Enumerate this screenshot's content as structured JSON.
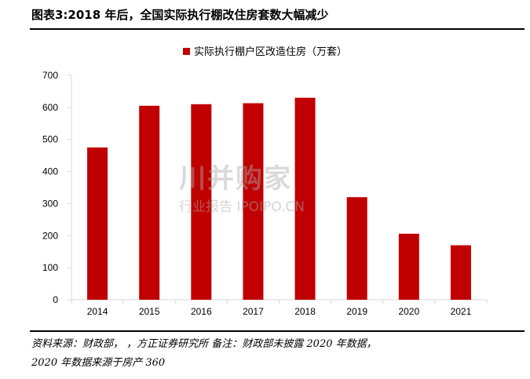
{
  "title": "图表3:2018 年后，全国实际执行棚改住房套数大幅减少",
  "source_line1": "资料来源：财政部，      ，方正证券研究所 备注：财政部未披露 2020 年数据，",
  "source_line2": "2020 年数据来源于房产 360",
  "watermark": {
    "brand": "川并购家",
    "sub": "行业报告 IPOIPO.CN"
  },
  "chart_data": {
    "type": "bar",
    "categories": [
      "2014",
      "2015",
      "2016",
      "2017",
      "2018",
      "2019",
      "2020",
      "2021"
    ],
    "series": [
      {
        "name": "实际执行棚户区改造住房（万套）",
        "values": [
          475,
          605,
          610,
          613,
          630,
          320,
          206,
          170
        ]
      }
    ],
    "ylim": [
      0,
      700
    ],
    "yticks": [
      0,
      100,
      200,
      300,
      400,
      500,
      600,
      700
    ],
    "grid": false,
    "legend": "top-center",
    "bar_color": "#C00000"
  }
}
